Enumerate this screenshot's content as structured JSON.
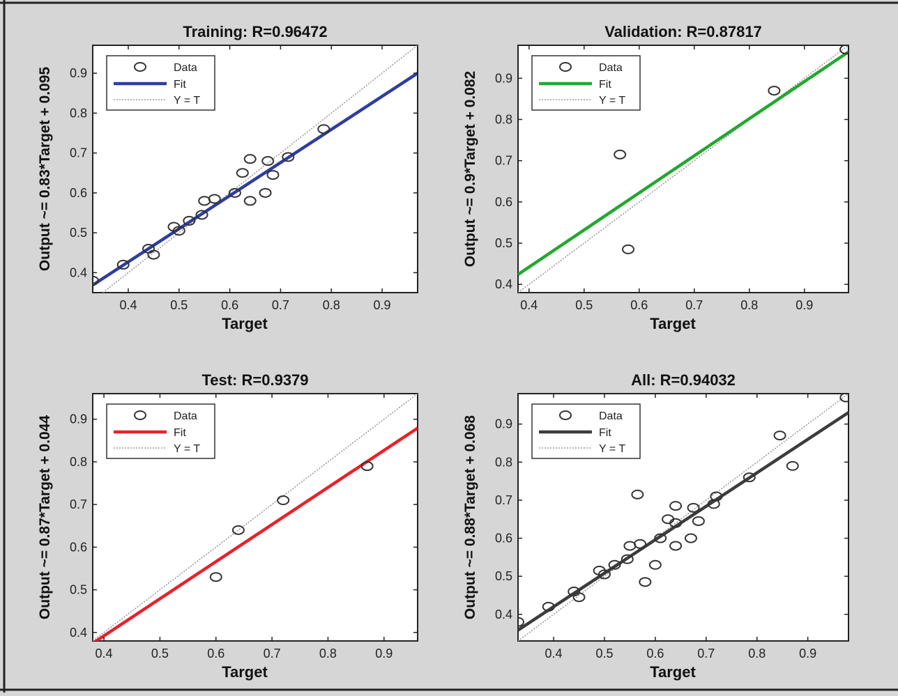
{
  "figure": {
    "background": "#d6d6d6"
  },
  "chart_data": [
    {
      "type": "scatter",
      "title": "Training: R=0.96472",
      "xlabel": "Target",
      "ylabel": "Output ~= 0.83*Target + 0.095",
      "xlim": [
        0.33,
        0.97
      ],
      "ylim": [
        0.35,
        0.97
      ],
      "xticks": [
        "0.4",
        "0.5",
        "0.6",
        "0.7",
        "0.8",
        "0.9"
      ],
      "yticks": [
        "0.4",
        "0.5",
        "0.6",
        "0.7",
        "0.8",
        "0.9"
      ],
      "fit_color": "#2e3d9e",
      "fit": {
        "slope": 0.83,
        "intercept": 0.095
      },
      "legend_position": "top-left",
      "legend": [
        "Data",
        "Fit",
        "Y = T"
      ],
      "grid": false,
      "points": [
        [
          0.33,
          0.38
        ],
        [
          0.39,
          0.42
        ],
        [
          0.44,
          0.46
        ],
        [
          0.45,
          0.445
        ],
        [
          0.49,
          0.515
        ],
        [
          0.5,
          0.505
        ],
        [
          0.52,
          0.53
        ],
        [
          0.545,
          0.545
        ],
        [
          0.55,
          0.58
        ],
        [
          0.57,
          0.585
        ],
        [
          0.61,
          0.6
        ],
        [
          0.625,
          0.65
        ],
        [
          0.64,
          0.685
        ],
        [
          0.64,
          0.58
        ],
        [
          0.67,
          0.6
        ],
        [
          0.675,
          0.68
        ],
        [
          0.685,
          0.645
        ],
        [
          0.715,
          0.69
        ],
        [
          0.785,
          0.76
        ]
      ]
    },
    {
      "type": "scatter",
      "title": "Validation: R=0.87817",
      "xlabel": "Target",
      "ylabel": "Output ~= 0.9*Target + 0.082",
      "xlim": [
        0.38,
        0.98
      ],
      "ylim": [
        0.38,
        0.98
      ],
      "xticks": [
        "0.4",
        "0.5",
        "0.6",
        "0.7",
        "0.8",
        "0.9"
      ],
      "yticks": [
        "0.4",
        "0.5",
        "0.6",
        "0.7",
        "0.8",
        "0.9"
      ],
      "fit_color": "#22a82e",
      "fit": {
        "slope": 0.9,
        "intercept": 0.082
      },
      "legend_position": "top-left",
      "legend": [
        "Data",
        "Fit",
        "Y = T"
      ],
      "grid": false,
      "points": [
        [
          0.565,
          0.715
        ],
        [
          0.58,
          0.485
        ],
        [
          0.845,
          0.87
        ],
        [
          0.975,
          0.97
        ]
      ]
    },
    {
      "type": "scatter",
      "title": "Test: R=0.9379",
      "xlabel": "Target",
      "ylabel": "Output ~= 0.87*Target + 0.044",
      "xlim": [
        0.38,
        0.96
      ],
      "ylim": [
        0.38,
        0.96
      ],
      "xticks": [
        "0.4",
        "0.5",
        "0.6",
        "0.7",
        "0.8",
        "0.9"
      ],
      "yticks": [
        "0.4",
        "0.5",
        "0.6",
        "0.7",
        "0.8",
        "0.9"
      ],
      "fit_color": "#e8222a",
      "fit": {
        "slope": 0.87,
        "intercept": 0.044
      },
      "legend_position": "top-left",
      "legend": [
        "Data",
        "Fit",
        "Y = T"
      ],
      "grid": false,
      "points": [
        [
          0.6,
          0.53
        ],
        [
          0.64,
          0.64
        ],
        [
          0.72,
          0.71
        ],
        [
          0.87,
          0.79
        ]
      ]
    },
    {
      "type": "scatter",
      "title": "All: R=0.94032",
      "xlabel": "Target",
      "ylabel": "Output ~= 0.88*Target + 0.068",
      "xlim": [
        0.33,
        0.98
      ],
      "ylim": [
        0.33,
        0.98
      ],
      "xticks": [
        "0.4",
        "0.5",
        "0.6",
        "0.7",
        "0.8",
        "0.9"
      ],
      "yticks": [
        "0.4",
        "0.5",
        "0.6",
        "0.7",
        "0.8",
        "0.9"
      ],
      "fit_color": "#3a3d3c",
      "fit": {
        "slope": 0.88,
        "intercept": 0.068
      },
      "legend_position": "top-left",
      "legend": [
        "Data",
        "Fit",
        "Y = T"
      ],
      "grid": false,
      "points": [
        [
          0.33,
          0.38
        ],
        [
          0.39,
          0.42
        ],
        [
          0.44,
          0.46
        ],
        [
          0.45,
          0.445
        ],
        [
          0.49,
          0.515
        ],
        [
          0.5,
          0.505
        ],
        [
          0.52,
          0.53
        ],
        [
          0.545,
          0.545
        ],
        [
          0.55,
          0.58
        ],
        [
          0.565,
          0.715
        ],
        [
          0.57,
          0.585
        ],
        [
          0.58,
          0.485
        ],
        [
          0.6,
          0.53
        ],
        [
          0.61,
          0.6
        ],
        [
          0.625,
          0.65
        ],
        [
          0.64,
          0.685
        ],
        [
          0.64,
          0.64
        ],
        [
          0.64,
          0.58
        ],
        [
          0.67,
          0.6
        ],
        [
          0.675,
          0.68
        ],
        [
          0.685,
          0.645
        ],
        [
          0.715,
          0.69
        ],
        [
          0.72,
          0.71
        ],
        [
          0.785,
          0.76
        ],
        [
          0.845,
          0.87
        ],
        [
          0.87,
          0.79
        ],
        [
          0.975,
          0.97
        ]
      ]
    }
  ]
}
